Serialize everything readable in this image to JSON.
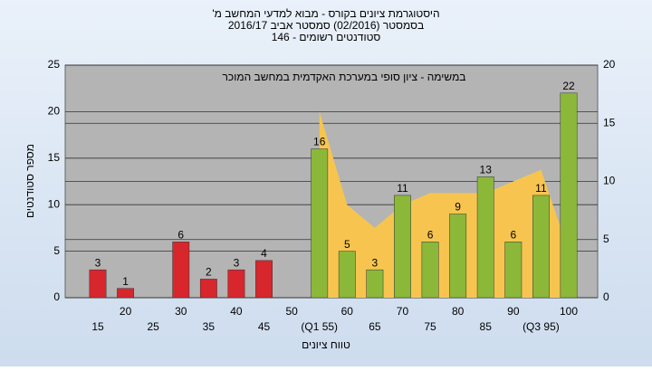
{
  "chart_data": {
    "type": "bar",
    "title": "'היסטוגרמת ציונים בקורס - מבוא למדעי המחשב מ",
    "subtitle": "בסמסטר  (02/2016)  סמסטר אביב 2016/17",
    "subtitle2": "סטודנטים רשומים - 146",
    "annotation": "במשימה - ציון סופי במערכת האקדמית במחשב המוכר",
    "y_label": "מספר סטודנטים",
    "x_label": "טווח ציונים",
    "categories": [
      "15",
      "20",
      "25",
      "30",
      "35",
      "40",
      "45",
      "50",
      "(Q1 55)",
      "60",
      "65",
      "70",
      "75",
      "80",
      "85",
      "90",
      "(Q3 95)",
      "100"
    ],
    "values": [
      3,
      1,
      null,
      6,
      2,
      3,
      4,
      null,
      16,
      5,
      3,
      11,
      6,
      9,
      13,
      6,
      11,
      22
    ],
    "colors": [
      "#d8262d",
      "#d8262d",
      "#d8262d",
      "#d8262d",
      "#d8262d",
      "#d8262d",
      "#d8262d",
      "#d8262d",
      "#8cb83a",
      "#8cb83a",
      "#8cb83a",
      "#8cb83a",
      "#8cb83a",
      "#8cb83a",
      "#8cb83a",
      "#8cb83a",
      "#8cb83a",
      "#8cb83a"
    ],
    "area": {
      "axis": "y2",
      "color": "#f7c54f",
      "values": [
        null,
        null,
        null,
        null,
        null,
        null,
        null,
        null,
        16,
        8,
        6,
        8,
        9,
        9,
        9,
        10,
        11,
        4
      ]
    },
    "ylim": [
      0,
      25
    ],
    "yticks": [
      0,
      5,
      10,
      15,
      20,
      25
    ],
    "y2lim": [
      0,
      20
    ],
    "y2ticks": [
      0,
      5,
      10,
      15,
      20
    ],
    "grid": true
  }
}
